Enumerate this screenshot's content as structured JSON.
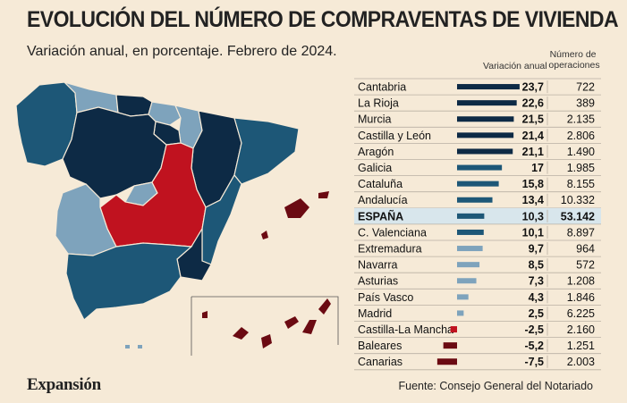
{
  "header": {
    "title": "EVOLUCIÓN DEL NÚMERO DE COMPRAVENTAS DE VIVIENDA",
    "subtitle": "Variación anual, en porcentaje. Febrero de 2024."
  },
  "colors": {
    "background": "#f6ead7",
    "dark_navy": "#0d2a45",
    "teal": "#1d5777",
    "mid_blue": "#336f8f",
    "light_blue": "#7ea3bc",
    "red": "#c0121f",
    "dark_red": "#6b0a12",
    "highlight_row": "#d8e6ec"
  },
  "chart_data": {
    "type": "table",
    "columns": [
      "",
      "Variación anual",
      "Número de operaciones"
    ],
    "rows": [
      {
        "region": "Cantabria",
        "variation": 23.7,
        "variation_label": "23,7",
        "operations": "722"
      },
      {
        "region": "La Rioja",
        "variation": 22.6,
        "variation_label": "22,6",
        "operations": "389"
      },
      {
        "region": "Murcia",
        "variation": 21.5,
        "variation_label": "21,5",
        "operations": "2.135"
      },
      {
        "region": "Castilla y León",
        "variation": 21.4,
        "variation_label": "21,4",
        "operations": "2.806"
      },
      {
        "region": "Aragón",
        "variation": 21.1,
        "variation_label": "21,1",
        "operations": "1.490"
      },
      {
        "region": "Galicia",
        "variation": 17,
        "variation_label": "17",
        "operations": "1.985"
      },
      {
        "region": "Cataluña",
        "variation": 15.8,
        "variation_label": "15,8",
        "operations": "8.155"
      },
      {
        "region": "Andalucía",
        "variation": 13.4,
        "variation_label": "13,4",
        "operations": "10.332"
      },
      {
        "region": "ESPAÑA",
        "variation": 10.3,
        "variation_label": "10,3",
        "operations": "53.142",
        "highlight": true
      },
      {
        "region": "C. Valenciana",
        "variation": 10.1,
        "variation_label": "10,1",
        "operations": "8.897"
      },
      {
        "region": "Extremadura",
        "variation": 9.7,
        "variation_label": "9,7",
        "operations": "964"
      },
      {
        "region": "Navarra",
        "variation": 8.5,
        "variation_label": "8,5",
        "operations": "572"
      },
      {
        "region": "Asturias",
        "variation": 7.3,
        "variation_label": "7,3",
        "operations": "1.208"
      },
      {
        "region": "País Vasco",
        "variation": 4.3,
        "variation_label": "4,3",
        "operations": "1.846"
      },
      {
        "region": "Madrid",
        "variation": 2.5,
        "variation_label": "2,5",
        "operations": "6.225"
      },
      {
        "region": "Castilla-La Mancha",
        "variation": -2.5,
        "variation_label": "-2,5",
        "operations": "2.160"
      },
      {
        "region": "Baleares",
        "variation": -5.2,
        "variation_label": "-5,2",
        "operations": "1.251"
      },
      {
        "region": "Canarias",
        "variation": -7.5,
        "variation_label": "-7,5",
        "operations": "2.003"
      }
    ]
  },
  "footer": {
    "logo": "Expansión",
    "source": "Fuente: Consejo General del Notariado"
  }
}
